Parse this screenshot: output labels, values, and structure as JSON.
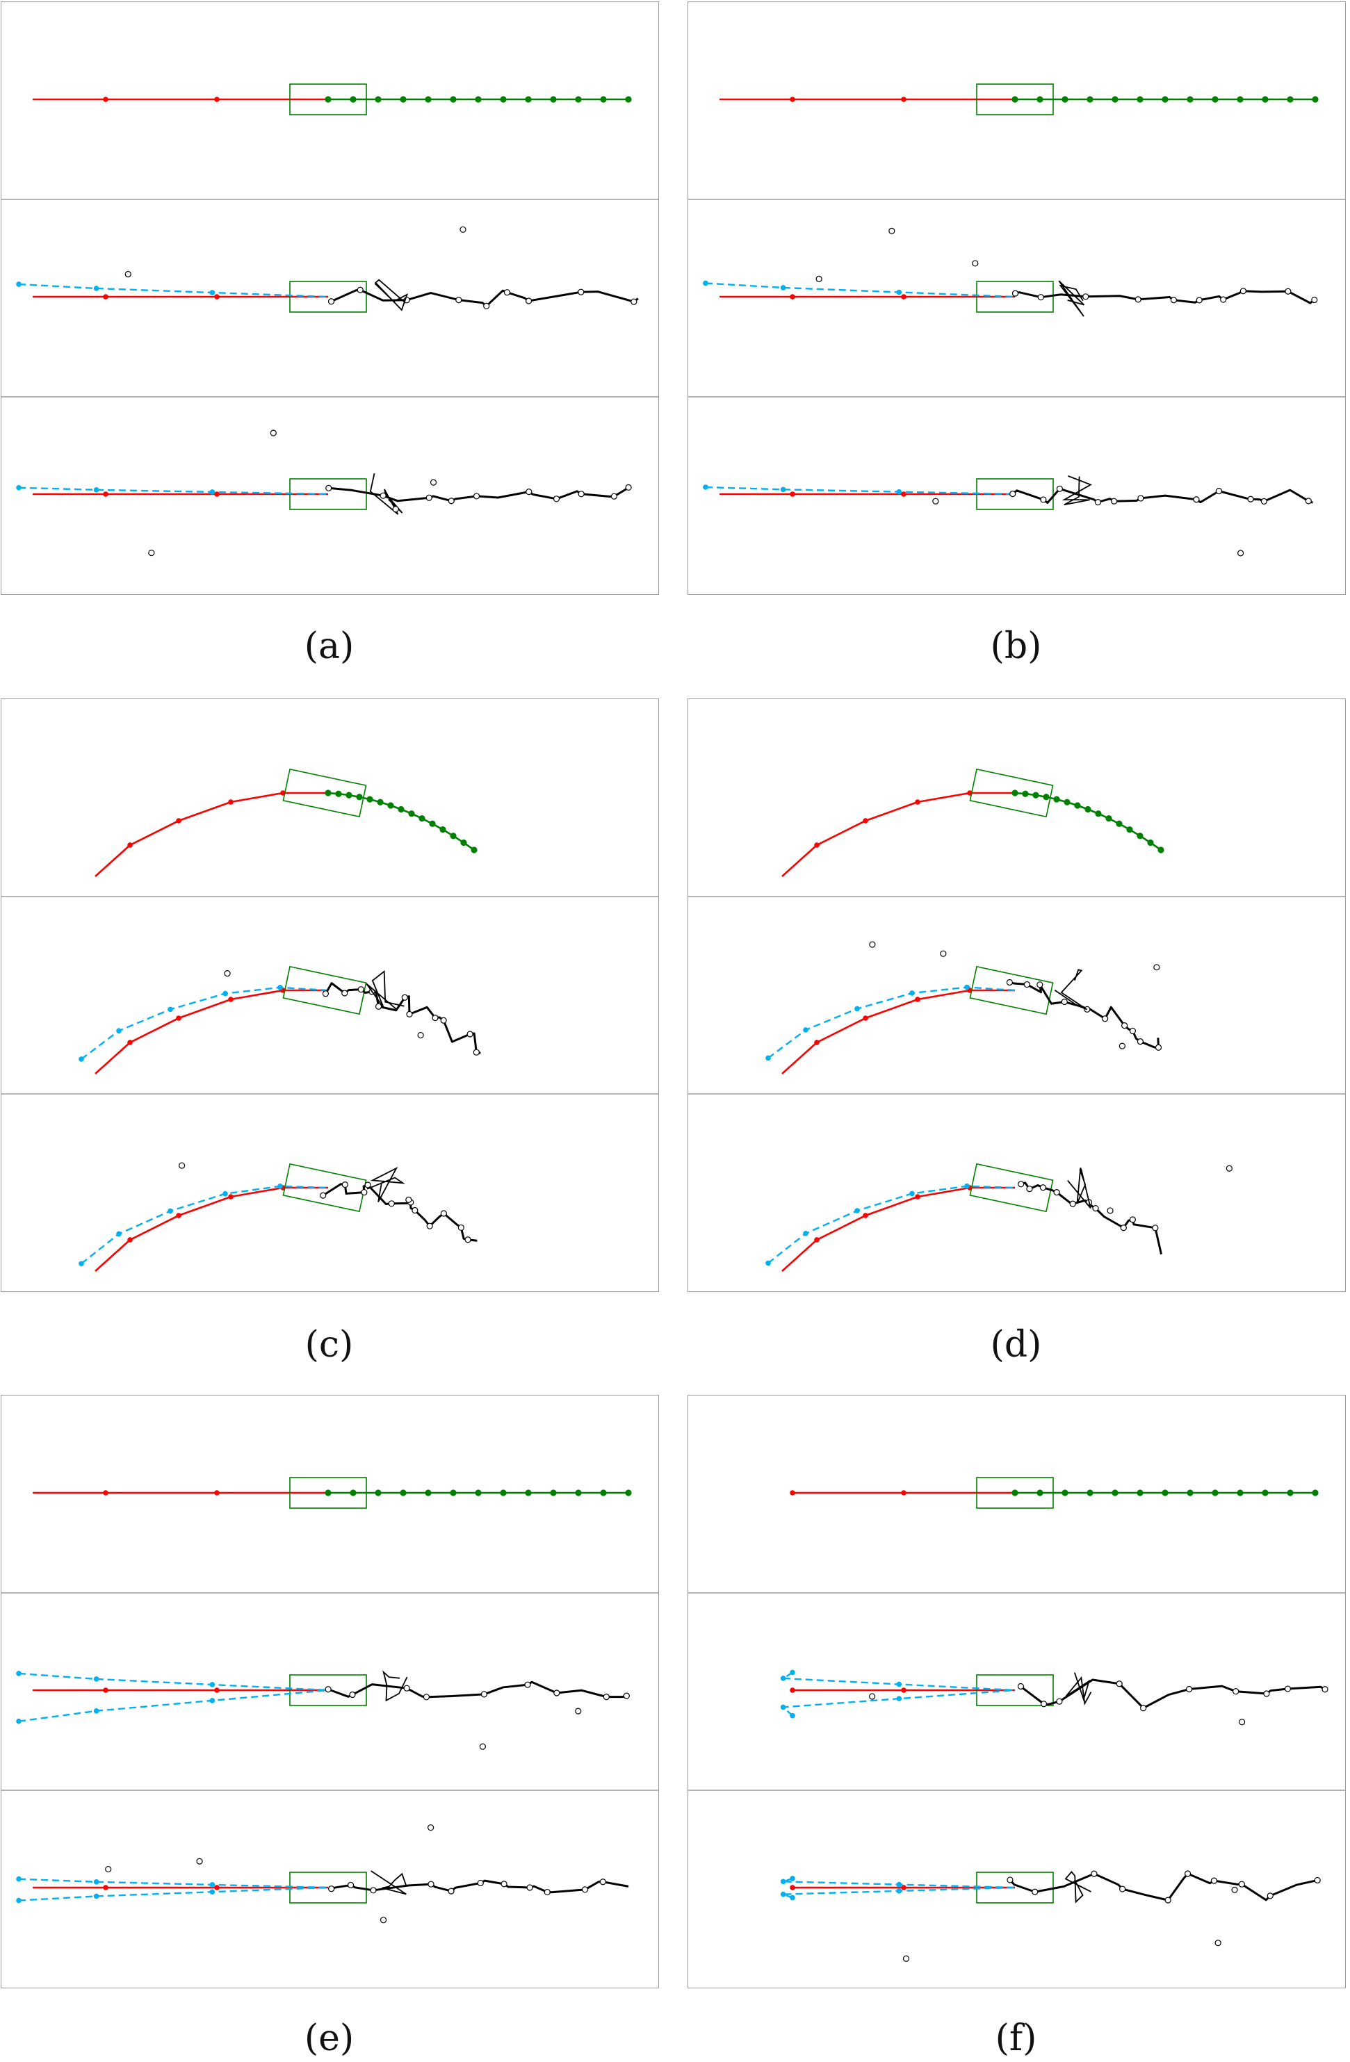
{
  "colors": {
    "history": "#ff0000",
    "future": "#008000",
    "box": "#008000",
    "prediction": "#00b0f0",
    "particles": "#000000",
    "frame": "#9a9a9a"
  },
  "panels": [
    {
      "label": "(a)",
      "scenario": "straight",
      "rows": [
        {
          "kind": "ground-truth"
        },
        {
          "kind": "model-output",
          "predictions": 1,
          "clusters": 1
        },
        {
          "kind": "model-output",
          "predictions": 1,
          "clusters": 1
        }
      ]
    },
    {
      "label": "(b)",
      "scenario": "straight",
      "rows": [
        {
          "kind": "ground-truth"
        },
        {
          "kind": "model-output",
          "predictions": 1,
          "clusters": 1
        },
        {
          "kind": "model-output",
          "predictions": 1,
          "clusters": 1
        }
      ]
    },
    {
      "label": "(c)",
      "scenario": "curved",
      "rows": [
        {
          "kind": "ground-truth"
        },
        {
          "kind": "model-output",
          "predictions": 1,
          "clusters": 1
        },
        {
          "kind": "model-output",
          "predictions": 1,
          "clusters": 1
        }
      ]
    },
    {
      "label": "(d)",
      "scenario": "curved",
      "rows": [
        {
          "kind": "ground-truth"
        },
        {
          "kind": "model-output",
          "predictions": 1,
          "clusters": 1
        },
        {
          "kind": "model-output",
          "predictions": 1,
          "clusters": 1
        }
      ]
    },
    {
      "label": "(e)",
      "scenario": "straight",
      "rows": [
        {
          "kind": "ground-truth"
        },
        {
          "kind": "model-output",
          "predictions": 2,
          "clusters": 1
        },
        {
          "kind": "model-output",
          "predictions": 2,
          "clusters": 1
        }
      ]
    },
    {
      "label": "(f)",
      "scenario": "straight",
      "rows": [
        {
          "kind": "ground-truth"
        },
        {
          "kind": "model-output",
          "predictions": 2,
          "clusters": 2
        },
        {
          "kind": "model-output",
          "predictions": 2,
          "clusters": 2
        }
      ]
    }
  ]
}
